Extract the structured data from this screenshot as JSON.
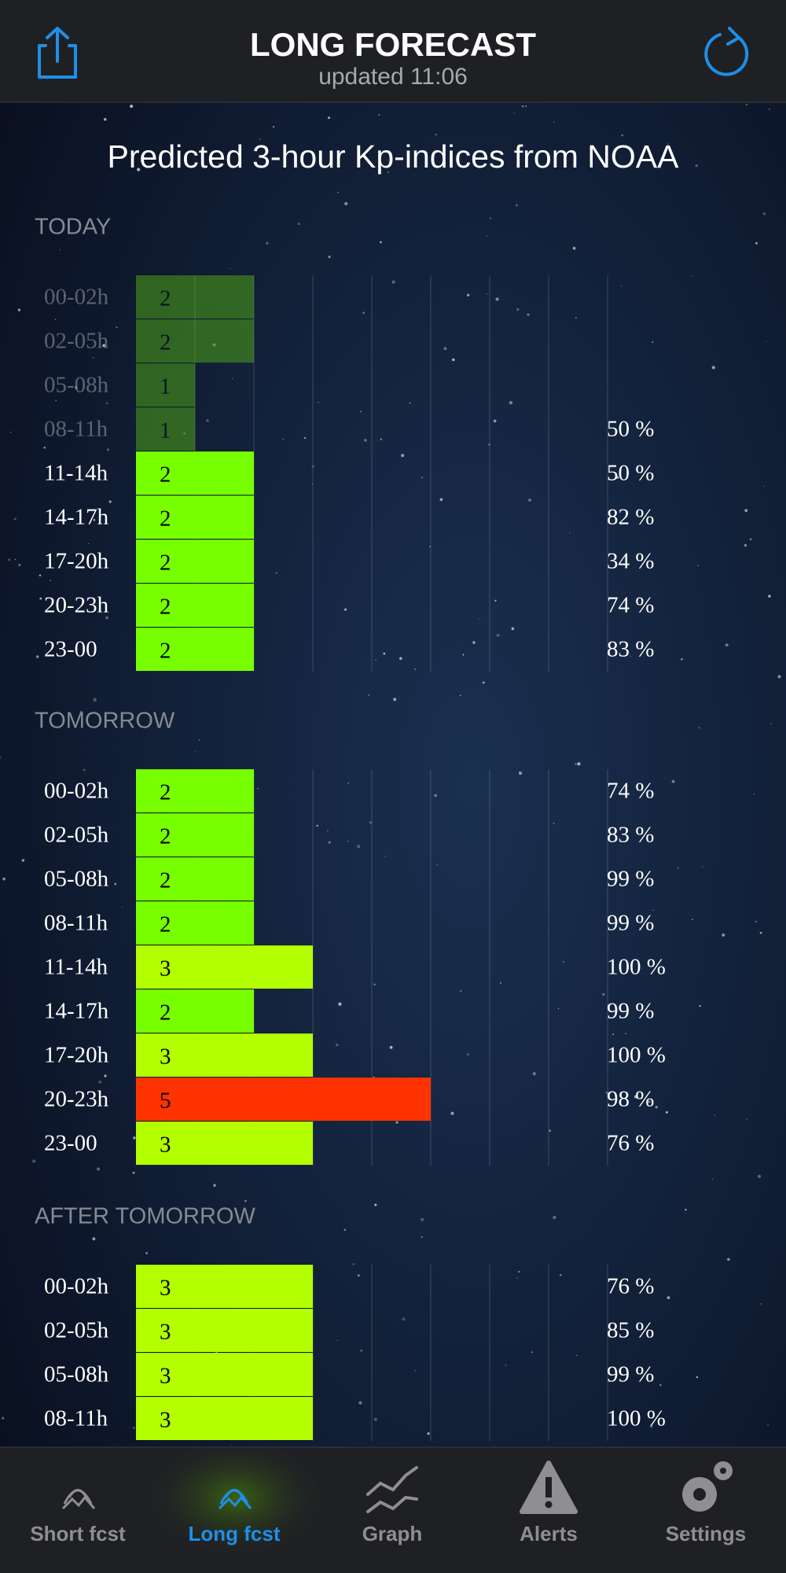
{
  "header": {
    "title": "LONG FORECAST",
    "updated": "updated  11:06"
  },
  "subtitle": "Predicted 3-hour Kp-indices from NOAA",
  "kp_colors": {
    "1": "#77ff00",
    "2": "#77ff00",
    "3": "#b3ff00",
    "5": "#ff3300"
  },
  "sections": [
    {
      "label": "TODAY",
      "rows": [
        {
          "time": "00-02h",
          "kp": 2,
          "probability": null,
          "past": true
        },
        {
          "time": "02-05h",
          "kp": 2,
          "probability": null,
          "past": true
        },
        {
          "time": "05-08h",
          "kp": 1,
          "probability": null,
          "past": true
        },
        {
          "time": "08-11h",
          "kp": 1,
          "probability": "50 %",
          "past": true
        },
        {
          "time": "11-14h",
          "kp": 2,
          "probability": "50 %"
        },
        {
          "time": "14-17h",
          "kp": 2,
          "probability": "82 %"
        },
        {
          "time": "17-20h",
          "kp": 2,
          "probability": "34 %"
        },
        {
          "time": "20-23h",
          "kp": 2,
          "probability": "74 %"
        },
        {
          "time": "23-00",
          "kp": 2,
          "probability": "83 %"
        }
      ]
    },
    {
      "label": "TOMORROW",
      "rows": [
        {
          "time": "00-02h",
          "kp": 2,
          "probability": "74 %"
        },
        {
          "time": "02-05h",
          "kp": 2,
          "probability": "83 %"
        },
        {
          "time": "05-08h",
          "kp": 2,
          "probability": "99 %"
        },
        {
          "time": "08-11h",
          "kp": 2,
          "probability": "99 %"
        },
        {
          "time": "11-14h",
          "kp": 3,
          "probability": "100 %"
        },
        {
          "time": "14-17h",
          "kp": 2,
          "probability": "99 %"
        },
        {
          "time": "17-20h",
          "kp": 3,
          "probability": "100 %"
        },
        {
          "time": "20-23h",
          "kp": 5,
          "probability": "98 %"
        },
        {
          "time": "23-00",
          "kp": 3,
          "probability": "76 %"
        }
      ]
    },
    {
      "label": "AFTER TOMORROW",
      "rows": [
        {
          "time": "00-02h",
          "kp": 3,
          "probability": "76 %"
        },
        {
          "time": "02-05h",
          "kp": 3,
          "probability": "85 %"
        },
        {
          "time": "05-08h",
          "kp": 3,
          "probability": "99 %"
        },
        {
          "time": "08-11h",
          "kp": 3,
          "probability": "100 %"
        }
      ]
    }
  ],
  "tabs": [
    {
      "label": "Short fcst",
      "active": false
    },
    {
      "label": "Long fcst",
      "active": true
    },
    {
      "label": "Graph",
      "active": false
    },
    {
      "label": "Alerts",
      "active": false
    },
    {
      "label": "Settings",
      "active": false
    }
  ]
}
